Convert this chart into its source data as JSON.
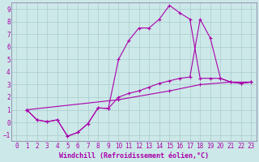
{
  "background_color": "#cce8e8",
  "grid_color": "#aacccc",
  "line_color": "#aa00aa",
  "spine_color": "#8888aa",
  "xlim": [
    -0.5,
    23.5
  ],
  "ylim": [
    -1.5,
    9.5
  ],
  "xticks": [
    0,
    1,
    2,
    3,
    4,
    5,
    6,
    7,
    8,
    9,
    10,
    11,
    12,
    13,
    14,
    15,
    16,
    17,
    18,
    19,
    20,
    21,
    22,
    23
  ],
  "yticks": [
    -1,
    0,
    1,
    2,
    3,
    4,
    5,
    6,
    7,
    8,
    9
  ],
  "xlabel": "Windchill (Refroidissement éolien,°C)",
  "xlabel_fontsize": 6.0,
  "tick_fontsize": 5.5,
  "line1_x": [
    1,
    2,
    3,
    4,
    5,
    6,
    7,
    8,
    9,
    10,
    11,
    12,
    13,
    14,
    15,
    16,
    17,
    18,
    19,
    20,
    21,
    22,
    23
  ],
  "line1_y": [
    1.0,
    0.2,
    0.05,
    0.2,
    -1.1,
    -0.8,
    -0.1,
    1.15,
    1.1,
    5.0,
    6.5,
    7.5,
    7.5,
    8.2,
    9.3,
    8.7,
    8.2,
    3.5,
    3.5,
    3.5,
    3.2,
    3.1,
    3.2
  ],
  "line2_x": [
    1,
    2,
    3,
    4,
    5,
    6,
    7,
    8,
    9,
    10,
    11,
    12,
    13,
    14,
    15,
    16,
    17,
    18,
    19,
    20,
    21,
    22,
    23
  ],
  "line2_y": [
    1.0,
    0.2,
    0.05,
    0.2,
    -1.1,
    -0.8,
    -0.1,
    1.15,
    1.1,
    2.0,
    2.3,
    2.5,
    2.8,
    3.1,
    3.3,
    3.5,
    3.6,
    8.2,
    6.7,
    3.5,
    3.2,
    3.1,
    3.2
  ],
  "line3_x": [
    1,
    10,
    15,
    18,
    21,
    23
  ],
  "line3_y": [
    1.0,
    1.8,
    2.5,
    3.0,
    3.2,
    3.2
  ]
}
